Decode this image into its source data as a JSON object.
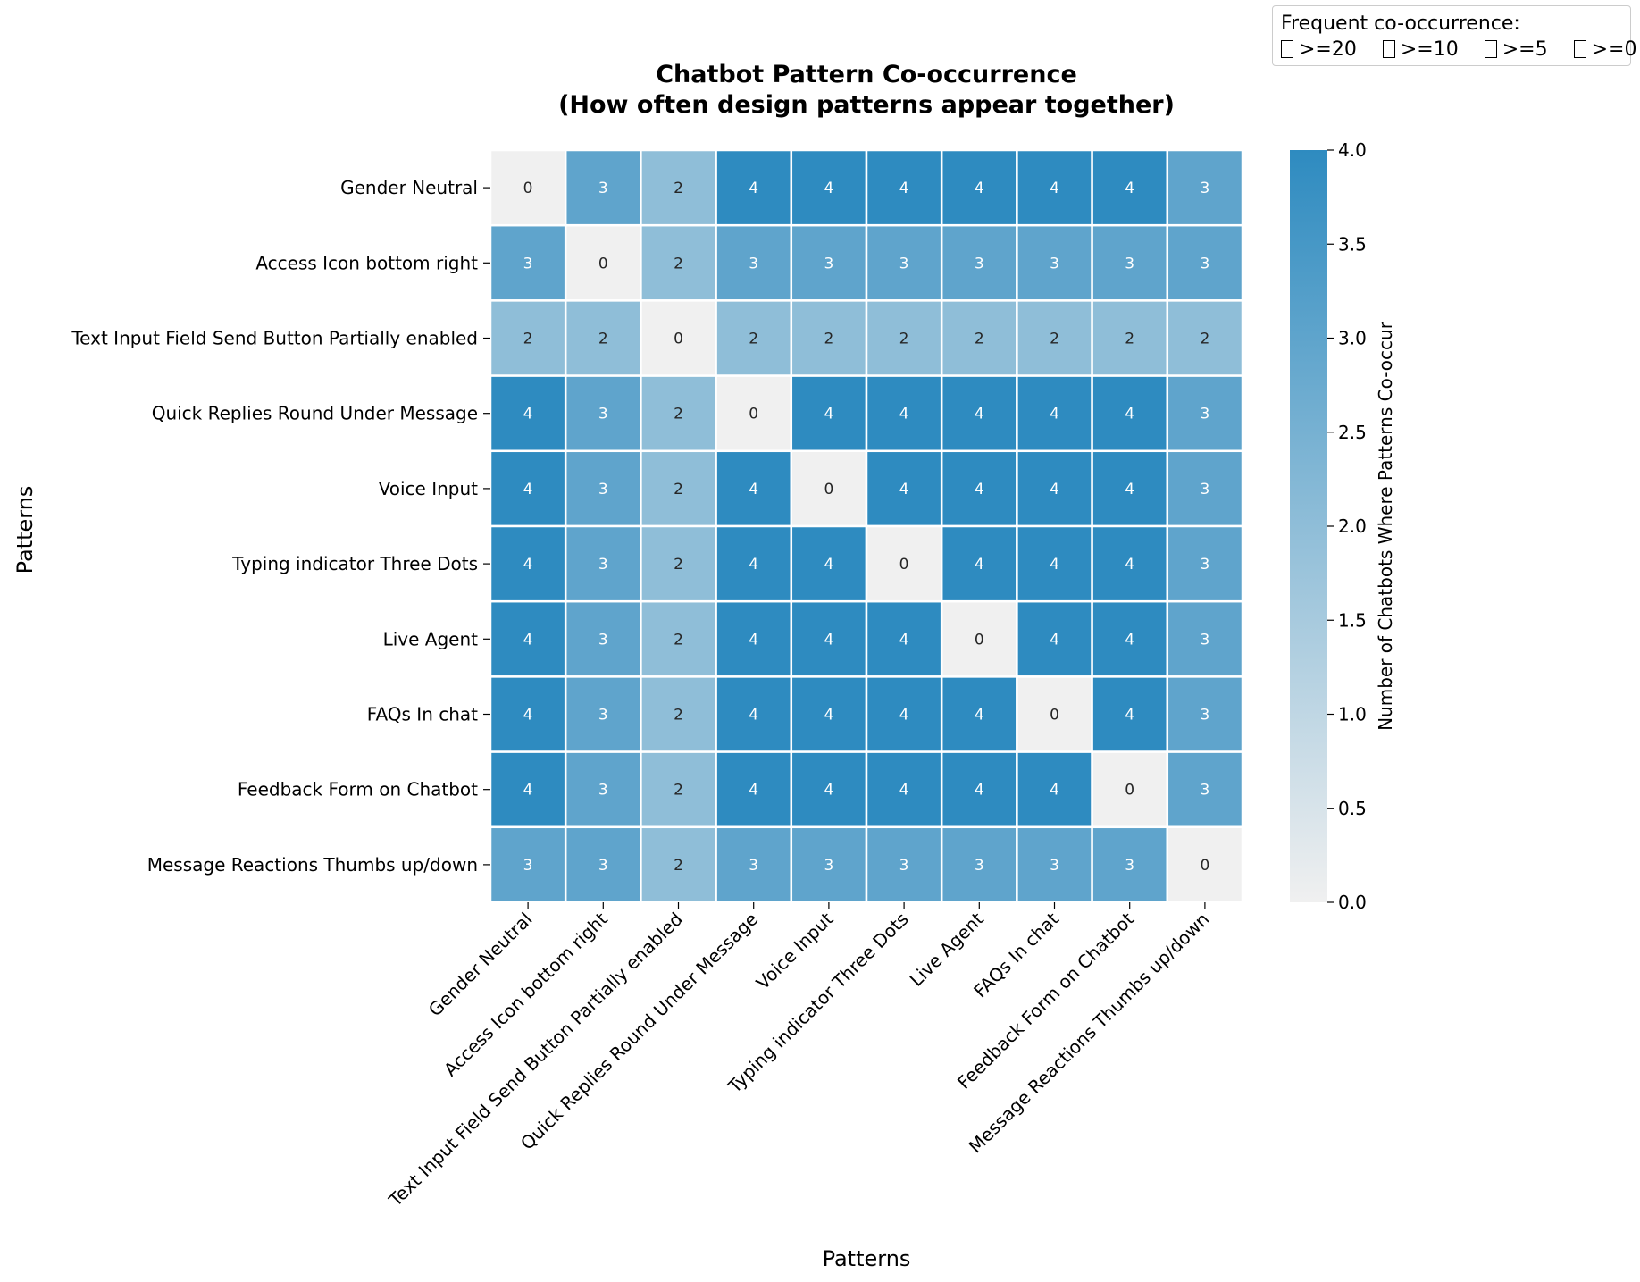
{
  "chart_data": {
    "type": "heatmap",
    "title_lines": [
      "Chatbot Pattern Co-occurrence",
      "(How often design patterns appear together)"
    ],
    "xlabel": "Patterns",
    "ylabel": "Patterns",
    "rows": [
      "Gender Neutral",
      "Access Icon bottom right",
      "Text Input Field Send Button Partially enabled",
      "Quick Replies Round Under Message",
      "Voice Input",
      "Typing indicator Three Dots",
      "Live Agent",
      "FAQs In chat",
      "Feedback Form on Chatbot",
      "Message Reactions Thumbs up/down"
    ],
    "columns": [
      "Gender Neutral",
      "Access Icon bottom right",
      "Text Input Field Send Button Partially enabled",
      "Quick Replies Round Under Message",
      "Voice Input",
      "Typing indicator Three Dots",
      "Live Agent",
      "FAQs In chat",
      "Feedback Form on Chatbot",
      "Message Reactions Thumbs up/down"
    ],
    "values": [
      [
        0,
        3,
        2,
        4,
        4,
        4,
        4,
        4,
        4,
        3
      ],
      [
        3,
        0,
        2,
        3,
        3,
        3,
        3,
        3,
        3,
        3
      ],
      [
        2,
        2,
        0,
        2,
        2,
        2,
        2,
        2,
        2,
        2
      ],
      [
        4,
        3,
        2,
        0,
        4,
        4,
        4,
        4,
        4,
        3
      ],
      [
        4,
        3,
        2,
        4,
        0,
        4,
        4,
        4,
        4,
        3
      ],
      [
        4,
        3,
        2,
        4,
        4,
        0,
        4,
        4,
        4,
        3
      ],
      [
        4,
        3,
        2,
        4,
        4,
        4,
        0,
        4,
        4,
        3
      ],
      [
        4,
        3,
        2,
        4,
        4,
        4,
        4,
        0,
        4,
        3
      ],
      [
        4,
        3,
        2,
        4,
        4,
        4,
        4,
        4,
        0,
        3
      ],
      [
        3,
        3,
        2,
        3,
        3,
        3,
        3,
        3,
        3,
        0
      ]
    ],
    "colorbar": {
      "label": "Number of Chatbots Where Patterns Co-occur",
      "range": [
        0,
        4
      ],
      "ticks": [
        "0.0",
        "0.5",
        "1.0",
        "1.5",
        "2.0",
        "2.5",
        "3.0",
        "3.5",
        "4.0"
      ],
      "color_low": "#f0f0f0",
      "color_high": "#2e8bc0"
    },
    "legend": {
      "title": "Frequent co-occurrence:",
      "items": [
        ">=20",
        ">=10",
        ">=5",
        ">=0"
      ]
    }
  }
}
